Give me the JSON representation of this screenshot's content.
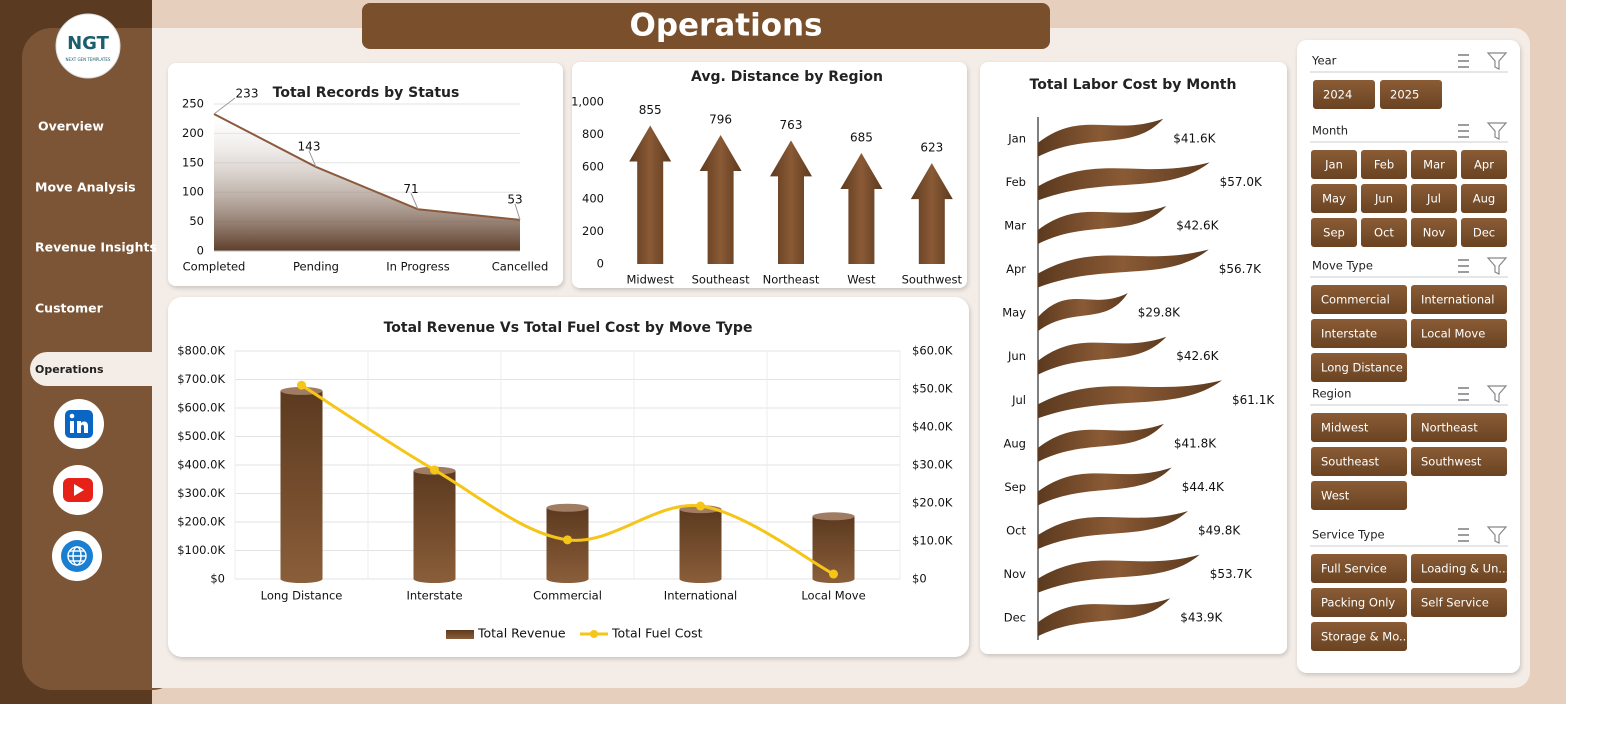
{
  "header": {
    "title": "Operations"
  },
  "logo": {
    "text": "NGT",
    "subtitle": "NEXT GEN TEMPLATES"
  },
  "nav": [
    "Overview",
    "Move Analysis",
    "Revenue Insights",
    "Customer",
    "Operations"
  ],
  "chart_data": [
    {
      "type": "area",
      "title": "Total Records by Status",
      "categories": [
        "Completed",
        "Pending",
        "In Progress",
        "Cancelled"
      ],
      "values": [
        233,
        143,
        71,
        53
      ],
      "color": "#8b5a3c",
      "ylim": [
        0,
        250
      ],
      "yticks": [
        0,
        50,
        100,
        150,
        200,
        250
      ],
      "grid": true
    },
    {
      "type": "bar",
      "title": "Avg. Distance by Region",
      "categories": [
        "Midwest",
        "Southeast",
        "Northeast",
        "West",
        "Southwest"
      ],
      "values": [
        855,
        796,
        763,
        685,
        623
      ],
      "color": "#6e4527",
      "ylim": [
        0,
        1000
      ],
      "yticks": [
        0,
        200,
        400,
        600,
        800,
        {
          "value": 1000,
          "label": "1,000"
        }
      ],
      "grid": false
    },
    {
      "type": "bar",
      "title": "Total Revenue Vs Total Fuel Cost by Move Type",
      "categories": [
        "Long Distance",
        "Interstate",
        "Commercial",
        "International",
        "Local Move"
      ],
      "series": [
        {
          "name": "Total Revenue",
          "color": "#7a4f2c",
          "values": [
            660000,
            380000,
            250000,
            245000,
            220000
          ]
        },
        {
          "name": "Total Fuel Cost",
          "color": "#f5c518",
          "type": "line",
          "axis": "y2",
          "values": [
            51000,
            28700,
            10300,
            19200,
            1300
          ]
        }
      ],
      "ylim": [
        0,
        800000
      ],
      "yticks": [
        {
          "value": 0,
          "label": "$0"
        },
        {
          "value": 100000,
          "label": "$100.0K"
        },
        {
          "value": 200000,
          "label": "$200.0K"
        },
        {
          "value": 300000,
          "label": "$300.0K"
        },
        {
          "value": 400000,
          "label": "$400.0K"
        },
        {
          "value": 500000,
          "label": "$500.0K"
        },
        {
          "value": 600000,
          "label": "$600.0K"
        },
        {
          "value": 700000,
          "label": "$700.0K"
        },
        {
          "value": 800000,
          "label": "$800.0K"
        }
      ],
      "y2lim": [
        0,
        60000
      ],
      "y2ticks": [
        {
          "value": 0,
          "label": "$0"
        },
        {
          "value": 10000,
          "label": "$10.0K"
        },
        {
          "value": 20000,
          "label": "$20.0K"
        },
        {
          "value": 30000,
          "label": "$30.0K"
        },
        {
          "value": 40000,
          "label": "$40.0K"
        },
        {
          "value": 50000,
          "label": "$50.0K"
        },
        {
          "value": 60000,
          "label": "$60.0K"
        }
      ],
      "grid": true
    },
    {
      "type": "barh",
      "title": "Total Labor Cost by Month",
      "categories": [
        "Jan",
        "Feb",
        "Mar",
        "Apr",
        "May",
        "Jun",
        "Jul",
        "Aug",
        "Sep",
        "Oct",
        "Nov",
        "Dec"
      ],
      "values": [
        41600,
        57000,
        42600,
        56700,
        29800,
        42600,
        61100,
        41800,
        44400,
        49800,
        53700,
        43900
      ],
      "value_labels": [
        "$41.6K",
        "$57.0K",
        "$42.6K",
        "$56.7K",
        "$29.8K",
        "$42.6K",
        "$61.1K",
        "$41.8K",
        "$44.4K",
        "$49.8K",
        "$53.7K",
        "$43.9K"
      ],
      "color": "#6e4527"
    }
  ],
  "slicers": [
    {
      "title": "Year",
      "items": [
        "2024",
        "2025"
      ]
    },
    {
      "title": "Month",
      "items": [
        "Jan",
        "Feb",
        "Mar",
        "Apr",
        "May",
        "Jun",
        "Jul",
        "Aug",
        "Sep",
        "Oct",
        "Nov",
        "Dec"
      ]
    },
    {
      "title": "Move Type",
      "items": [
        "Commercial",
        "International",
        "Interstate",
        "Local Move",
        "Long Distance"
      ]
    },
    {
      "title": "Region",
      "items": [
        "Midwest",
        "Northeast",
        "Southeast",
        "Southwest",
        "West"
      ]
    },
    {
      "title": "Service Type",
      "items": [
        "Full Service",
        "Loading & Un...",
        "Packing Only",
        "Self Service",
        "Storage & Mo..."
      ]
    }
  ]
}
